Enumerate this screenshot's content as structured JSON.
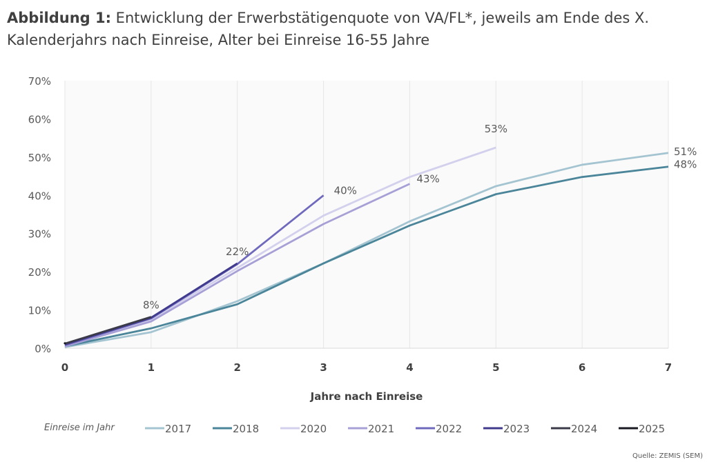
{
  "title": {
    "prefix": "Abbildung 1:",
    "text": " Entwicklung der Erwerbstätigenquote von VA/FL*, jeweils am Ende des X. Kalenderjahrs nach Einreise, Alter bei Einreise 16-55 Jahre"
  },
  "source": "Quelle: ZEMIS (SEM)",
  "chart_data": {
    "type": "line",
    "xlabel": "Jahre nach Einreise",
    "ylabel": "",
    "xlim": [
      0,
      7
    ],
    "ylim": [
      0,
      70
    ],
    "x_ticks": [
      "0",
      "1",
      "2",
      "3",
      "4",
      "5",
      "6",
      "7"
    ],
    "y_ticks": [
      "0%",
      "10%",
      "20%",
      "30%",
      "40%",
      "50%",
      "60%",
      "70%"
    ],
    "grid": "vertical",
    "legend_title": "Einreise im Jahr",
    "legend_position": "bottom",
    "series": [
      {
        "name": "2017",
        "color": "#a3c4d0",
        "x": [
          0,
          1,
          2,
          3,
          4,
          5,
          6,
          7
        ],
        "values": [
          0.3,
          4.2,
          12.3,
          22.2,
          33.2,
          42.4,
          48,
          51.1
        ]
      },
      {
        "name": "2018",
        "color": "#4a8599",
        "x": [
          0,
          1,
          2,
          3,
          4,
          5,
          6,
          7
        ],
        "values": [
          0.5,
          5.2,
          11.5,
          22.2,
          32.1,
          40.3,
          44.8,
          47.5
        ]
      },
      {
        "name": "2020",
        "color": "#d2d0ec",
        "x": [
          0,
          1,
          2,
          3,
          4,
          5
        ],
        "values": [
          0.5,
          7.5,
          21,
          34.7,
          44.8,
          52.5
        ]
      },
      {
        "name": "2021",
        "color": "#a6a0d6",
        "x": [
          0,
          1,
          2,
          3,
          4
        ],
        "values": [
          0.5,
          7,
          20.2,
          32.5,
          43
        ]
      },
      {
        "name": "2022",
        "color": "#6f69be",
        "x": [
          0,
          1,
          2,
          3
        ],
        "values": [
          0.8,
          7.8,
          22,
          40
        ]
      },
      {
        "name": "2023",
        "color": "#403a8c",
        "x": [
          0,
          1,
          2
        ],
        "values": [
          1,
          8,
          22.2
        ]
      },
      {
        "name": "2024",
        "color": "#3a3a48",
        "x": [
          0,
          1
        ],
        "values": [
          1.2,
          8.2
        ]
      },
      {
        "name": "2025",
        "color": "#1a1a22",
        "x": [
          0
        ],
        "values": [
          1.3
        ]
      }
    ],
    "data_labels": [
      {
        "series": "2024",
        "x": 1,
        "text": "8%"
      },
      {
        "series": "2023",
        "x": 2,
        "text": "22%"
      },
      {
        "series": "2022",
        "x": 3,
        "text": "40%"
      },
      {
        "series": "2021",
        "x": 4,
        "text": "43%"
      },
      {
        "series": "2020",
        "x": 5,
        "text": "53%"
      },
      {
        "series": "2017",
        "x": 7,
        "text": "51%"
      },
      {
        "series": "2018",
        "x": 7,
        "text": "48%"
      }
    ]
  }
}
